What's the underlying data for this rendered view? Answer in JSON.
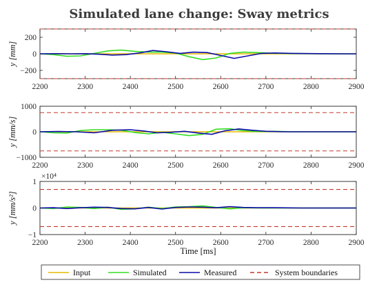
{
  "figure": {
    "title": "Simulated lane change: Sway metrics",
    "legend": [
      {
        "label": "Input",
        "color": "#e6b800",
        "dash": "solid"
      },
      {
        "label": "Simulated",
        "color": "#33dd22",
        "dash": "solid"
      },
      {
        "label": "Measured",
        "color": "#0a0aa8",
        "dash": "solid"
      },
      {
        "label": "System boundaries",
        "color": "#c0392b",
        "dash": "dashed"
      }
    ]
  },
  "chart_data": [
    {
      "type": "line",
      "title": "Simulated lane change: Sway metrics",
      "xlabel": "",
      "ylabel": "y [mm]",
      "xlim": [
        2200,
        2900
      ],
      "ylim": [
        -300,
        300
      ],
      "xticks": [
        "2200",
        "2300",
        "2400",
        "2500",
        "2600",
        "2700",
        "2800",
        "2900"
      ],
      "yticks": [
        -200,
        0,
        200
      ],
      "ytick_labels": [
        "−200",
        "0",
        "200"
      ],
      "boundaries": [
        -300,
        300
      ],
      "series": [
        {
          "name": "Input",
          "x": [
            2200,
            2900
          ],
          "y": [
            0,
            0
          ]
        },
        {
          "name": "Simulated",
          "x": [
            2200,
            2230,
            2260,
            2290,
            2320,
            2350,
            2380,
            2410,
            2440,
            2470,
            2500,
            2530,
            2560,
            2590,
            2620,
            2650,
            2680,
            2710,
            2740,
            2800,
            2850,
            2900
          ],
          "y": [
            0,
            -10,
            -30,
            -25,
            5,
            35,
            45,
            30,
            20,
            20,
            10,
            -35,
            -70,
            -50,
            5,
            20,
            15,
            8,
            5,
            2,
            0,
            0
          ]
        },
        {
          "name": "Measured",
          "x": [
            2200,
            2240,
            2270,
            2300,
            2330,
            2360,
            2390,
            2420,
            2450,
            2480,
            2510,
            2540,
            2570,
            2600,
            2630,
            2660,
            2690,
            2720,
            2760,
            2820,
            2870,
            2900
          ],
          "y": [
            0,
            2,
            0,
            2,
            -5,
            -15,
            -10,
            10,
            40,
            25,
            5,
            20,
            15,
            -20,
            -55,
            -25,
            5,
            10,
            5,
            2,
            0,
            0
          ]
        }
      ]
    },
    {
      "type": "line",
      "xlabel": "",
      "ylabel": "y [mm/s]",
      "xlim": [
        2200,
        2900
      ],
      "ylim": [
        -1000,
        1000
      ],
      "xticks": [
        "2200",
        "2300",
        "2400",
        "2500",
        "2600",
        "2700",
        "2800",
        "2900"
      ],
      "yticks": [
        -1000,
        0,
        1000
      ],
      "ytick_labels": [
        "−1000",
        "0",
        "1000"
      ],
      "boundaries": [
        -750,
        750
      ],
      "series": [
        {
          "name": "Input",
          "x": [
            2200,
            2900
          ],
          "y": [
            0,
            0
          ]
        },
        {
          "name": "Simulated",
          "x": [
            2200,
            2230,
            2260,
            2290,
            2320,
            2350,
            2380,
            2410,
            2440,
            2470,
            2500,
            2530,
            2560,
            2590,
            2620,
            2650,
            2680,
            2720,
            2760,
            2820,
            2900
          ],
          "y": [
            0,
            -40,
            -50,
            50,
            80,
            80,
            60,
            -30,
            -80,
            -20,
            -80,
            -150,
            -100,
            100,
            120,
            40,
            10,
            20,
            0,
            0,
            0
          ]
        },
        {
          "name": "Measured",
          "x": [
            2200,
            2240,
            2280,
            2320,
            2360,
            2400,
            2430,
            2460,
            2490,
            2520,
            2550,
            2580,
            2610,
            2640,
            2670,
            2700,
            2740,
            2790,
            2840,
            2900
          ],
          "y": [
            0,
            10,
            0,
            -40,
            60,
            80,
            30,
            -40,
            -20,
            20,
            -50,
            -100,
            40,
            110,
            60,
            20,
            0,
            0,
            0,
            0
          ]
        }
      ]
    },
    {
      "type": "line",
      "xlabel": "Time [ms]",
      "ylabel": "y [mm/s²]",
      "exponent_label": "×10⁴",
      "xlim": [
        2200,
        2900
      ],
      "ylim": [
        -1,
        1
      ],
      "xticks": [
        "2200",
        "2300",
        "2400",
        "2500",
        "2600",
        "2700",
        "2800",
        "2900"
      ],
      "yticks": [
        -1,
        0,
        1
      ],
      "ytick_labels": [
        "−1",
        "0",
        "1"
      ],
      "boundaries": [
        -0.7,
        0.7
      ],
      "series": [
        {
          "name": "Input",
          "x": [
            2200,
            2900
          ],
          "y": [
            0,
            0
          ]
        },
        {
          "name": "Simulated",
          "x": [
            2200,
            2230,
            2260,
            2290,
            2320,
            2350,
            2380,
            2410,
            2440,
            2470,
            2500,
            2530,
            2560,
            2590,
            2620,
            2650,
            2700,
            2760,
            2900
          ],
          "y": [
            0,
            -0.02,
            0.04,
            0.02,
            -0.02,
            0.03,
            -0.05,
            -0.03,
            0.03,
            -0.02,
            0.04,
            0.05,
            0.08,
            0.02,
            -0.03,
            0.01,
            0,
            0,
            0
          ]
        },
        {
          "name": "Measured",
          "x": [
            2200,
            2230,
            2260,
            2290,
            2320,
            2350,
            2380,
            2410,
            2440,
            2470,
            2500,
            2530,
            2560,
            2590,
            2620,
            2650,
            2680,
            2720,
            2780,
            2900
          ],
          "y": [
            0,
            0.01,
            -0.02,
            0.01,
            0.03,
            0.02,
            -0.02,
            -0.03,
            0.02,
            -0.04,
            0.02,
            0.04,
            0.03,
            0.01,
            0.05,
            0.02,
            0.01,
            0.01,
            0,
            0
          ]
        }
      ]
    }
  ]
}
